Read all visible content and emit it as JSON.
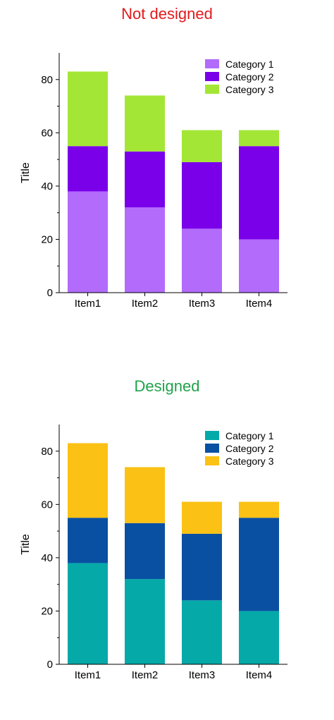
{
  "panels": [
    {
      "heading": "Not designed",
      "heading_color": "#e41a1c"
    },
    {
      "heading": "Designed",
      "heading_color": "#1fa34a"
    }
  ],
  "chart_data": [
    {
      "type": "bar",
      "stacked": true,
      "title": "",
      "xlabel": "",
      "ylabel": "Title",
      "categories": [
        "Item1",
        "Item2",
        "Item3",
        "Item4"
      ],
      "ylim": [
        0,
        90
      ],
      "yticks": [
        0,
        20,
        40,
        60,
        80
      ],
      "legend": "top-right",
      "grid": false,
      "series": [
        {
          "name": "Category 1",
          "color": "#b26bfb",
          "values": [
            38,
            32,
            24,
            20
          ]
        },
        {
          "name": "Category 2",
          "color": "#7a00ea",
          "values": [
            17,
            21,
            25,
            35
          ]
        },
        {
          "name": "Category 3",
          "color": "#a3e635",
          "values": [
            28,
            21,
            12,
            6
          ]
        }
      ]
    },
    {
      "type": "bar",
      "stacked": true,
      "title": "",
      "xlabel": "",
      "ylabel": "Title",
      "categories": [
        "Item1",
        "Item2",
        "Item3",
        "Item4"
      ],
      "ylim": [
        0,
        90
      ],
      "yticks": [
        0,
        20,
        40,
        60,
        80
      ],
      "legend": "top-right",
      "grid": false,
      "series": [
        {
          "name": "Category 1",
          "color": "#05a9a8",
          "values": [
            38,
            32,
            24,
            20
          ]
        },
        {
          "name": "Category 2",
          "color": "#0a50a2",
          "values": [
            17,
            21,
            25,
            35
          ]
        },
        {
          "name": "Category 3",
          "color": "#fbc114",
          "values": [
            28,
            21,
            12,
            6
          ]
        }
      ]
    }
  ]
}
